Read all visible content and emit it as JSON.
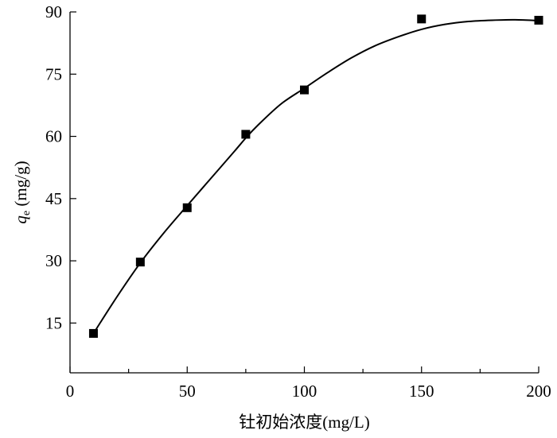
{
  "chart_data": {
    "type": "scatter",
    "xlabel": "钍初始浓度(mg/L)",
    "ylabel": {
      "symbol": "q",
      "subscript": "e",
      "unit": " (mg/g)"
    },
    "xlim": [
      0,
      200
    ],
    "ylim": [
      3,
      90
    ],
    "xticks": [
      0,
      50,
      100,
      150,
      200
    ],
    "xtick_labels": [
      "0",
      "50",
      "100",
      "150",
      "200"
    ],
    "xminor_ticks": [
      25,
      75,
      125,
      175
    ],
    "yticks": [
      15,
      30,
      45,
      60,
      75,
      90
    ],
    "ytick_labels": [
      "15",
      "30",
      "45",
      "60",
      "75",
      "90"
    ],
    "grid": false,
    "legend": "none",
    "marker": "square",
    "series": [
      {
        "x": [
          10,
          30,
          50,
          75,
          100,
          150,
          200
        ],
        "y": [
          12.5,
          29.7,
          42.8,
          60.5,
          71.2,
          88.3,
          88.0
        ]
      }
    ],
    "fit_curve": {
      "x": [
        10,
        20,
        30,
        40,
        50,
        60,
        70,
        75,
        80,
        90,
        100,
        110,
        120,
        130,
        140,
        150,
        160,
        170,
        180,
        190,
        200
      ],
      "y": [
        12.5,
        21.3,
        29.5,
        36.7,
        43.3,
        49.8,
        56.3,
        59.6,
        62.6,
        67.8,
        71.6,
        75.4,
        78.9,
        81.8,
        84.0,
        85.8,
        87.0,
        87.7,
        88.0,
        88.1,
        87.9
      ]
    }
  }
}
